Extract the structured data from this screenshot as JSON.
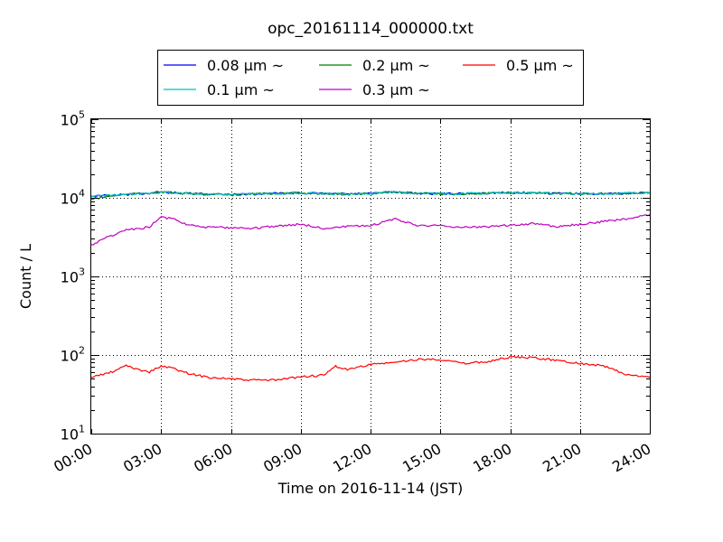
{
  "chart_data": {
    "type": "line",
    "title": "opc_20161114_000000.txt",
    "xlabel": "Time on 2016-11-14 (JST)",
    "ylabel": "Count / L",
    "x_ticks": [
      "00:00",
      "03:00",
      "06:00",
      "09:00",
      "12:00",
      "15:00",
      "18:00",
      "21:00",
      "24:00"
    ],
    "xlim_hours": [
      0,
      24
    ],
    "y_scale": "log",
    "ylim": [
      10,
      100000
    ],
    "y_ticks": [
      {
        "base": "10",
        "exp": "1",
        "value": 10
      },
      {
        "base": "10",
        "exp": "2",
        "value": 100
      },
      {
        "base": "10",
        "exp": "3",
        "value": 1000
      },
      {
        "base": "10",
        "exp": "4",
        "value": 10000
      },
      {
        "base": "10",
        "exp": "5",
        "value": 100000
      }
    ],
    "grid": true,
    "legend_position": "top, above plot",
    "series": [
      {
        "name": "0.08 μm ~",
        "color": "#0000ff",
        "x": [
          0,
          1,
          2,
          3,
          4,
          5,
          6,
          7,
          8,
          9,
          10,
          11,
          12,
          13,
          14,
          15,
          16,
          17,
          18,
          19,
          20,
          21,
          22,
          23,
          24
        ],
        "y": [
          10500,
          10800,
          11200,
          11800,
          11400,
          11200,
          11100,
          11200,
          11400,
          11500,
          11300,
          11200,
          11300,
          11900,
          11400,
          11300,
          11300,
          11500,
          11600,
          11600,
          11400,
          11300,
          11300,
          11400,
          11600
        ]
      },
      {
        "name": "0.2 μm ~",
        "color": "#008000",
        "x": [
          0,
          1,
          2,
          3,
          4,
          5,
          6,
          7,
          8,
          9,
          10,
          11,
          12,
          13,
          14,
          15,
          16,
          17,
          18,
          19,
          20,
          21,
          22,
          23,
          24
        ],
        "y": [
          9600,
          10700,
          11300,
          11900,
          11300,
          11100,
          10900,
          11200,
          11400,
          11500,
          11300,
          11100,
          11300,
          11900,
          11400,
          11200,
          11200,
          11500,
          11500,
          11600,
          11300,
          11200,
          11300,
          11400,
          11500
        ]
      },
      {
        "name": "0.5 μm ~",
        "color": "#ff0000",
        "x": [
          0,
          1,
          1.5,
          2,
          2.5,
          3,
          3.5,
          4,
          5,
          6,
          6.5,
          7,
          8,
          9,
          10,
          10.5,
          11,
          12,
          13,
          14,
          15,
          16,
          17,
          18,
          19,
          20,
          21,
          22,
          23,
          24
        ],
        "y": [
          52,
          62,
          74,
          65,
          61,
          72,
          68,
          60,
          52,
          50,
          48,
          48,
          48,
          53,
          55,
          72,
          65,
          76,
          80,
          88,
          88,
          78,
          82,
          94,
          92,
          86,
          78,
          73,
          56,
          52
        ]
      },
      {
        "name": "0.1 μm ~",
        "color": "#00bfbf",
        "x": [
          0,
          1,
          2,
          3,
          4,
          5,
          6,
          7,
          8,
          9,
          10,
          11,
          12,
          13,
          14,
          15,
          16,
          17,
          18,
          19,
          20,
          21,
          22,
          23,
          24
        ],
        "y": [
          10500,
          10800,
          11200,
          11800,
          11400,
          11200,
          11100,
          11200,
          11400,
          11500,
          11300,
          11200,
          11300,
          11900,
          11400,
          11300,
          11300,
          11500,
          11600,
          11600,
          11400,
          11300,
          11300,
          11400,
          11600
        ]
      },
      {
        "name": "0.3 μm ~",
        "color": "#bf00bf",
        "x": [
          0,
          0.5,
          1,
          1.5,
          2,
          2.5,
          3,
          3.5,
          4,
          5,
          6,
          7,
          8,
          9,
          10,
          11,
          12,
          13,
          14,
          15,
          16,
          17,
          18,
          19,
          20,
          21,
          22,
          23,
          24
        ],
        "y": [
          2500,
          3000,
          3400,
          3900,
          4000,
          4300,
          5600,
          5500,
          4700,
          4200,
          4200,
          4100,
          4400,
          4600,
          4100,
          4300,
          4400,
          5400,
          4500,
          4400,
          4200,
          4300,
          4500,
          4700,
          4300,
          4600,
          5000,
          5400,
          6100
        ]
      }
    ]
  }
}
